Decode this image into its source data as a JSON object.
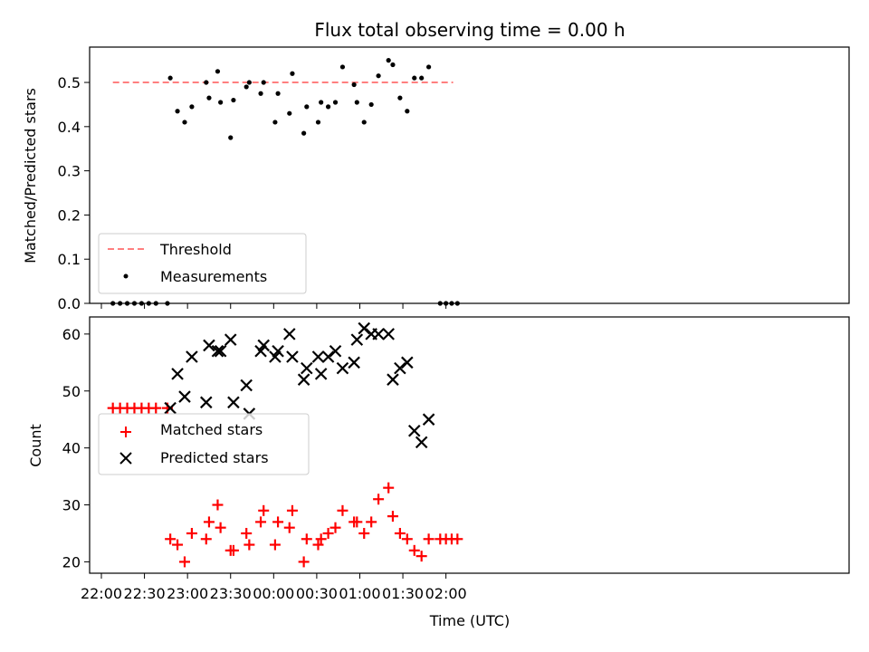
{
  "chart_data": [
    {
      "type": "scatter",
      "title": "Flux total observing time = 0.00 h",
      "ylabel": "Matched/Predicted stars",
      "ylim": [
        0,
        0.58
      ],
      "yticks": [
        "0.0",
        "0.1",
        "0.2",
        "0.3",
        "0.4",
        "0.5"
      ],
      "legend": {
        "placement": "lower-left",
        "entries": [
          "Threshold",
          "Measurements"
        ]
      },
      "threshold": {
        "name": "Threshold",
        "value": 0.5,
        "x_start": "22:08",
        "x_end": "02:05",
        "color": "#ff7f7f"
      },
      "series": [
        {
          "name": "Measurements",
          "color": "#000000",
          "x": [
            "22:08",
            "22:13",
            "22:18",
            "22:23",
            "22:28",
            "22:33",
            "22:38",
            "22:46",
            "22:48",
            "22:53",
            "22:58",
            "23:03",
            "23:13",
            "23:15",
            "23:21",
            "23:23",
            "23:30",
            "23:32",
            "23:41",
            "23:43",
            "23:51",
            "23:53",
            "00:01",
            "00:03",
            "00:11",
            "00:13",
            "00:21",
            "00:23",
            "00:31",
            "00:33",
            "00:38",
            "00:43",
            "00:48",
            "00:56",
            "00:58",
            "01:03",
            "01:08",
            "01:13",
            "01:20",
            "01:23",
            "01:28",
            "01:33",
            "01:38",
            "01:43",
            "01:48",
            "01:56",
            "02:00",
            "02:04",
            "02:08"
          ],
          "y": [
            0,
            0,
            0,
            0,
            0,
            0,
            0,
            0,
            0.51,
            0.435,
            0.41,
            0.445,
            0.5,
            0.465,
            0.525,
            0.455,
            0.375,
            0.46,
            0.49,
            0.5,
            0.475,
            0.5,
            0.41,
            0.475,
            0.43,
            0.52,
            0.385,
            0.445,
            0.41,
            0.455,
            0.445,
            0.455,
            0.535,
            0.495,
            0.455,
            0.41,
            0.45,
            0.515,
            0.55,
            0.54,
            0.465,
            0.435,
            0.51,
            0.51,
            0.535,
            0,
            0,
            0,
            0
          ]
        }
      ]
    },
    {
      "type": "scatter",
      "xlabel": "Time (UTC)",
      "ylabel": "Count",
      "ylim": [
        18,
        63
      ],
      "yticks": [
        "20",
        "30",
        "40",
        "50",
        "60"
      ],
      "xticks": [
        "22:00",
        "22:30",
        "23:00",
        "23:30",
        "00:00",
        "00:30",
        "01:00",
        "01:30",
        "02:00"
      ],
      "legend": {
        "placement": "center-left",
        "entries": [
          "Matched stars",
          "Predicted stars"
        ]
      },
      "series": [
        {
          "name": "Matched stars",
          "color": "#ff0000",
          "marker": "+",
          "x": [
            "22:08",
            "22:13",
            "22:18",
            "22:23",
            "22:28",
            "22:33",
            "22:38",
            "22:46",
            "22:48",
            "22:53",
            "22:58",
            "23:03",
            "23:13",
            "23:15",
            "23:21",
            "23:23",
            "23:30",
            "23:32",
            "23:41",
            "23:43",
            "23:51",
            "23:53",
            "00:01",
            "00:03",
            "00:11",
            "00:13",
            "00:21",
            "00:23",
            "00:31",
            "00:33",
            "00:38",
            "00:43",
            "00:48",
            "00:56",
            "00:58",
            "01:03",
            "01:08",
            "01:13",
            "01:20",
            "01:23",
            "01:28",
            "01:33",
            "01:38",
            "01:43",
            "01:48",
            "01:56",
            "02:00",
            "02:04",
            "02:08"
          ],
          "y": [
            47,
            47,
            47,
            47,
            47,
            47,
            47,
            47,
            24,
            23,
            20,
            25,
            24,
            27,
            30,
            26,
            22,
            22,
            25,
            23,
            27,
            29,
            23,
            27,
            26,
            29,
            20,
            24,
            23,
            24,
            25,
            26,
            29,
            27,
            27,
            25,
            27,
            31,
            33,
            28,
            25,
            24,
            22,
            21,
            24,
            24,
            24,
            24,
            24
          ]
        },
        {
          "name": "Predicted stars",
          "color": "#000000",
          "marker": "x",
          "x": [
            "22:48",
            "22:53",
            "22:58",
            "23:03",
            "23:13",
            "23:15",
            "23:21",
            "23:23",
            "23:30",
            "23:32",
            "23:41",
            "23:43",
            "23:51",
            "23:53",
            "00:01",
            "00:03",
            "00:11",
            "00:13",
            "00:21",
            "00:23",
            "00:31",
            "00:33",
            "00:38",
            "00:43",
            "00:48",
            "00:56",
            "00:58",
            "01:03",
            "01:08",
            "01:13",
            "01:20",
            "01:23",
            "01:28",
            "01:33",
            "01:38",
            "01:43",
            "01:48"
          ],
          "y": [
            47,
            53,
            49,
            56,
            48,
            58,
            57,
            57,
            59,
            48,
            51,
            46,
            57,
            58,
            56,
            57,
            60,
            56,
            52,
            54,
            56,
            53,
            56,
            57,
            54,
            55,
            59,
            61,
            60,
            60,
            60,
            52,
            54,
            55,
            43,
            41,
            45
          ]
        }
      ]
    }
  ]
}
